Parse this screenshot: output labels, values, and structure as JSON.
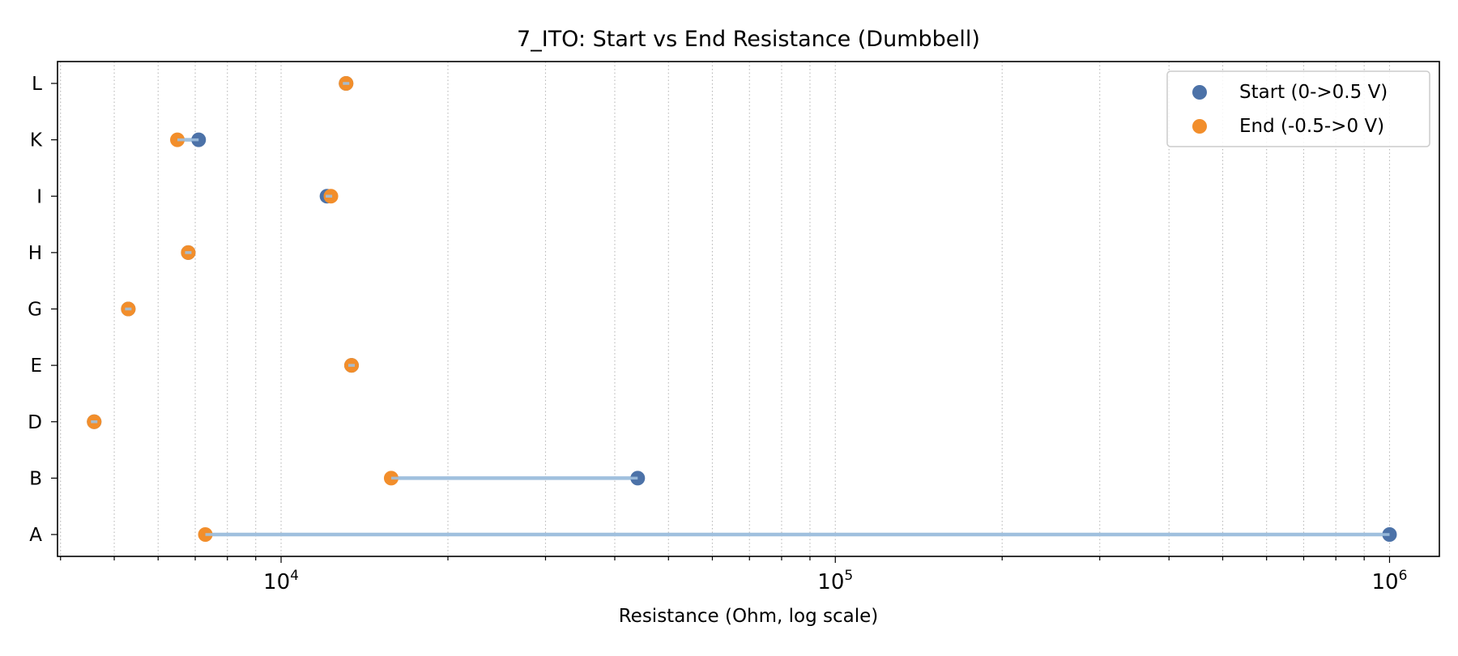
{
  "chart_data": {
    "type": "dumbbell",
    "title": "7_ITO: Start vs End Resistance (Dumbbell)",
    "xlabel": "Resistance (Ohm, log scale)",
    "ylabel": "",
    "x_scale": "log",
    "xlim": [
      3950,
      1230000
    ],
    "x_major_ticks": [
      {
        "value": 10000,
        "base": "10",
        "exp": "4"
      },
      {
        "value": 100000,
        "base": "10",
        "exp": "5"
      },
      {
        "value": 1000000,
        "base": "10",
        "exp": "6"
      }
    ],
    "grid": "x-major-and-minor-dotted",
    "legend_position": "top-right",
    "categories": [
      "A",
      "B",
      "D",
      "E",
      "G",
      "H",
      "I",
      "K",
      "L"
    ],
    "series": [
      {
        "name": "Start (0->0.5 V)",
        "color": "#4c72a8",
        "values": [
          1000000,
          44000,
          4600,
          13400,
          5300,
          6800,
          12100,
          7100,
          13100
        ]
      },
      {
        "name": "End (-0.5->0 V)",
        "color": "#f28e2b",
        "values": [
          7300,
          15800,
          4600,
          13400,
          5300,
          6800,
          12300,
          6500,
          13100
        ]
      }
    ],
    "connector_color": "#a0c0de"
  }
}
